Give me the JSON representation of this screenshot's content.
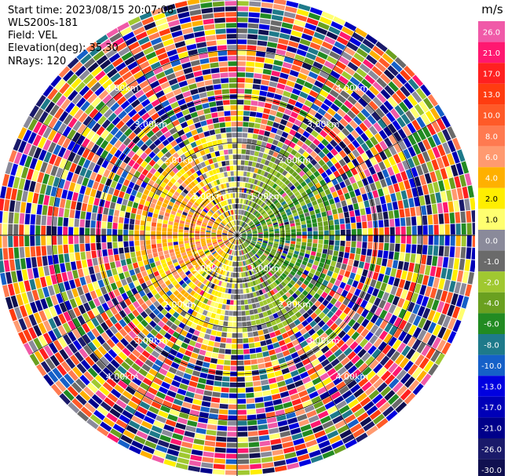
{
  "header": {
    "start_time": "Start time: 2023/08/15 20:07:08",
    "instrument": "WLS200s-181",
    "field": "Field: VEL",
    "elevation": "Elevation(deg): 35.30",
    "nrays": "NRays: 120"
  },
  "colorbar": {
    "unit": "m/s",
    "labels": [
      "26.0",
      "21.0",
      "17.0",
      "13.0",
      "10.0",
      "8.0",
      "6.0",
      "4.0",
      "2.0",
      "1.0",
      "0.0",
      "-1.0",
      "-2.0",
      "-4.0",
      "-6.0",
      "-8.0",
      "-10.0",
      "-13.0",
      "-17.0",
      "-21.0",
      "-26.0",
      "-30.0"
    ],
    "colors": [
      "#f05aa8",
      "#ff1870",
      "#ff2020",
      "#ff3c10",
      "#ff5a28",
      "#ff7a50",
      "#ff9a70",
      "#ffb000",
      "#ffee00",
      "#ffff70",
      "#8a8a9a",
      "#6a6a6a",
      "#a0c830",
      "#6aa020",
      "#228b22",
      "#1e7a8a",
      "#1560c8",
      "#0000e0",
      "#0000b8",
      "#00008a",
      "#1a1a6a",
      "#101050"
    ]
  },
  "chart_data": {
    "type": "heatmap",
    "projection": "polar PPI",
    "field": "VEL",
    "units": "m/s",
    "nrays": 120,
    "range_rings_km": [
      1.0,
      2.0,
      3.0,
      4.0
    ],
    "ring_labels": [
      "1.00km",
      "2.00km",
      "3.00km",
      "4.00km"
    ],
    "value_range": [
      -30.0,
      26.0
    ],
    "near_field_pattern": "positive (orange/yellow) to the west, negative (green/blue) to the east",
    "far_field_pattern": "noisy mixed colors"
  }
}
